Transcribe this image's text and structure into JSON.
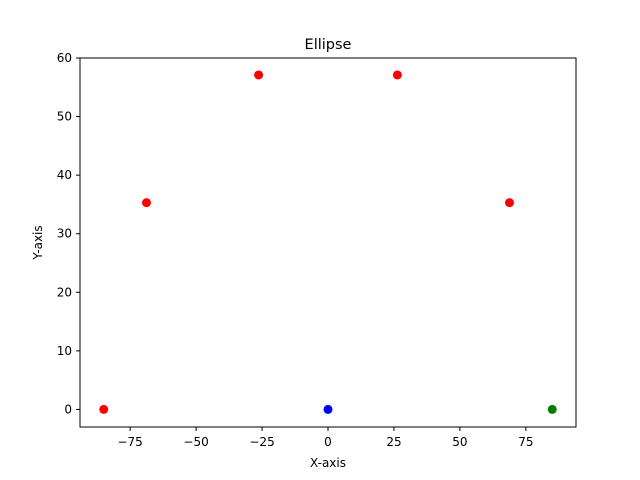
{
  "chart_data": {
    "type": "scatter",
    "title": "Ellipse",
    "xlabel": "X-axis",
    "ylabel": "Y-axis",
    "xlim": [
      -94,
      94
    ],
    "ylim": [
      -3,
      60
    ],
    "xticks": [
      {
        "value": -75,
        "label": "−75"
      },
      {
        "value": -50,
        "label": "−50"
      },
      {
        "value": -25,
        "label": "−25"
      },
      {
        "value": 0,
        "label": "0"
      },
      {
        "value": 25,
        "label": "25"
      },
      {
        "value": 50,
        "label": "50"
      },
      {
        "value": 75,
        "label": "75"
      }
    ],
    "yticks": [
      {
        "value": 0,
        "label": "0"
      },
      {
        "value": 10,
        "label": "10"
      },
      {
        "value": 20,
        "label": "20"
      },
      {
        "value": 30,
        "label": "30"
      },
      {
        "value": 40,
        "label": "40"
      },
      {
        "value": 50,
        "label": "50"
      },
      {
        "value": 60,
        "label": "60"
      }
    ],
    "grid": false,
    "series": [
      {
        "color": "#ff0000",
        "points": [
          {
            "x": -85,
            "y": 0
          },
          {
            "x": -68.8,
            "y": 35.3
          },
          {
            "x": -26.3,
            "y": 57.1
          },
          {
            "x": 26.3,
            "y": 57.1
          },
          {
            "x": 68.8,
            "y": 35.3
          }
        ]
      },
      {
        "color": "#0000ff",
        "points": [
          {
            "x": 0,
            "y": 0
          }
        ]
      },
      {
        "color": "#008000",
        "points": [
          {
            "x": 85,
            "y": 0
          }
        ]
      }
    ]
  }
}
